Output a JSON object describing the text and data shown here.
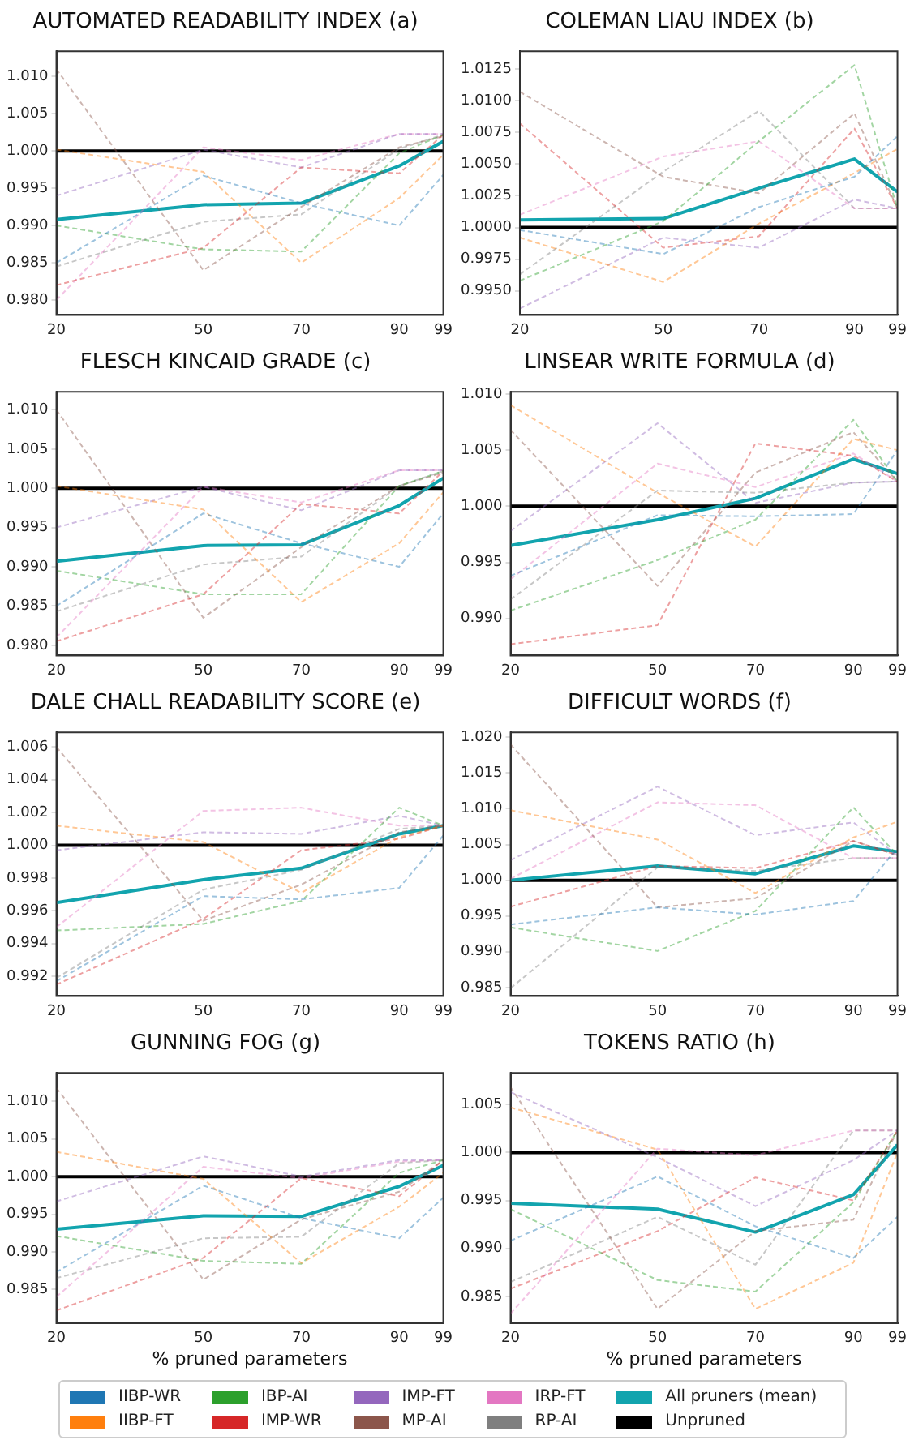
{
  "chart_data": [
    {
      "type": "line",
      "title": "AUTOMATED READABILITY INDEX (a)",
      "x": [
        20,
        50,
        70,
        90,
        99
      ],
      "xlim": [
        20,
        99
      ],
      "xticks": [
        20,
        50,
        70,
        90,
        99
      ],
      "ylim": [
        0.978,
        1.0134
      ],
      "yticks": [
        {
          "value": 0.98,
          "label": "0.980"
        },
        {
          "value": 0.985,
          "label": "0.985"
        },
        {
          "value": 0.99,
          "label": "0.990"
        },
        {
          "value": 0.995,
          "label": "0.995"
        },
        {
          "value": 1.0,
          "label": "1.000"
        },
        {
          "value": 1.005,
          "label": "1.005"
        },
        {
          "value": 1.01,
          "label": "1.010"
        }
      ],
      "grid": false,
      "legend": "bottom",
      "series": [
        {
          "name": "IIBP-WR",
          "color": "#1f77b4",
          "line_style": "dashed",
          "values": [
            0.985,
            0.9967,
            0.993,
            0.99,
            0.9968
          ]
        },
        {
          "name": "IIBP-FT",
          "color": "#ff7f0e",
          "line_style": "dashed",
          "values": [
            1.0002,
            0.9972,
            0.985,
            0.9937,
            0.9995
          ]
        },
        {
          "name": "IBP-AI",
          "color": "#2ca02c",
          "line_style": "dashed",
          "values": [
            0.99,
            0.9868,
            0.9865,
            0.9997,
            1.0022
          ]
        },
        {
          "name": "IMP-WR",
          "color": "#d62728",
          "line_style": "dashed",
          "values": [
            0.982,
            0.987,
            0.9978,
            0.997,
            1.0022
          ]
        },
        {
          "name": "IMP-FT",
          "color": "#9467bd",
          "line_style": "dashed",
          "values": [
            0.994,
            1.0002,
            0.9978,
            1.0023,
            1.0023
          ]
        },
        {
          "name": "MP-AI",
          "color": "#8c564b",
          "line_style": "dashed",
          "values": [
            1.011,
            0.984,
            0.9925,
            1.0005,
            1.002
          ]
        },
        {
          "name": "IRP-FT",
          "color": "#e377c2",
          "line_style": "dashed",
          "values": [
            0.98,
            1.0005,
            0.9988,
            1.0023,
            1.0023
          ]
        },
        {
          "name": "RP-AI",
          "color": "#7f7f7f",
          "line_style": "dashed",
          "values": [
            0.9845,
            0.9905,
            0.9915,
            1.0003,
            1.0022
          ]
        },
        {
          "name": "All pruners (mean)",
          "color": "#12a4ae",
          "line_style": "solid",
          "values": [
            0.9908,
            0.9928,
            0.993,
            0.998,
            1.0013
          ]
        },
        {
          "name": "Unpruned",
          "color": "#000000",
          "line_style": "solid",
          "values": [
            1,
            1,
            1,
            1,
            1
          ]
        }
      ]
    },
    {
      "type": "line",
      "title": "COLEMAN LIAU INDEX (b)",
      "x": [
        20,
        50,
        70,
        90,
        99
      ],
      "xlim": [
        20,
        99
      ],
      "xticks": [
        20,
        50,
        70,
        90,
        99
      ],
      "ylim": [
        0.9931,
        1.0139
      ],
      "yticks": [
        {
          "value": 0.995,
          "label": "0.9950"
        },
        {
          "value": 0.9975,
          "label": "0.9975"
        },
        {
          "value": 1.0,
          "label": "1.0000"
        },
        {
          "value": 1.0025,
          "label": "1.0025"
        },
        {
          "value": 1.005,
          "label": "1.0050"
        },
        {
          "value": 1.0075,
          "label": "1.0075"
        },
        {
          "value": 1.01,
          "label": "1.0100"
        },
        {
          "value": 1.0125,
          "label": "1.0125"
        }
      ],
      "grid": false,
      "legend": "bottom",
      "series": [
        {
          "name": "IIBP-WR",
          "color": "#1f77b4",
          "line_style": "dashed",
          "values": [
            0.9998,
            0.9979,
            1.0016,
            1.004,
            1.0072
          ]
        },
        {
          "name": "IIBP-FT",
          "color": "#ff7f0e",
          "line_style": "dashed",
          "values": [
            0.9992,
            0.9957,
            1.0003,
            1.0043,
            1.0062
          ]
        },
        {
          "name": "IBP-AI",
          "color": "#2ca02c",
          "line_style": "dashed",
          "values": [
            0.9958,
            1.0005,
            1.0068,
            1.0128,
            1.0015
          ]
        },
        {
          "name": "IMP-WR",
          "color": "#d62728",
          "line_style": "dashed",
          "values": [
            1.0082,
            0.9984,
            0.9993,
            1.0078,
            1.0015
          ]
        },
        {
          "name": "IMP-FT",
          "color": "#9467bd",
          "line_style": "dashed",
          "values": [
            0.9936,
            0.9992,
            0.9984,
            1.0022,
            1.0015
          ]
        },
        {
          "name": "MP-AI",
          "color": "#8c564b",
          "line_style": "dashed",
          "values": [
            1.0107,
            1.004,
            1.0027,
            1.009,
            1.0015
          ]
        },
        {
          "name": "IRP-FT",
          "color": "#e377c2",
          "line_style": "dashed",
          "values": [
            1.001,
            1.0056,
            1.0068,
            1.0015,
            1.0015
          ]
        },
        {
          "name": "RP-AI",
          "color": "#7f7f7f",
          "line_style": "dashed",
          "values": [
            0.9963,
            1.0044,
            1.0092,
            1.0015,
            1.0015
          ]
        },
        {
          "name": "All pruners (mean)",
          "color": "#12a4ae",
          "line_style": "solid",
          "values": [
            1.0006,
            1.0007,
            1.0031,
            1.0054,
            1.0028
          ]
        },
        {
          "name": "Unpruned",
          "color": "#000000",
          "line_style": "solid",
          "values": [
            1,
            1,
            1,
            1,
            1
          ]
        }
      ]
    },
    {
      "type": "line",
      "title": "FLESCH KINCAID GRADE (c)",
      "x": [
        20,
        50,
        70,
        90,
        99
      ],
      "xlim": [
        20,
        99
      ],
      "xticks": [
        20,
        50,
        70,
        90,
        99
      ],
      "ylim": [
        0.9787,
        1.0123
      ],
      "yticks": [
        {
          "value": 0.98,
          "label": "0.980"
        },
        {
          "value": 0.985,
          "label": "0.985"
        },
        {
          "value": 0.99,
          "label": "0.990"
        },
        {
          "value": 0.995,
          "label": "0.995"
        },
        {
          "value": 1.0,
          "label": "1.000"
        },
        {
          "value": 1.005,
          "label": "1.005"
        },
        {
          "value": 1.01,
          "label": "1.010"
        }
      ],
      "grid": false,
      "legend": "bottom",
      "series": [
        {
          "name": "IIBP-WR",
          "color": "#1f77b4",
          "line_style": "dashed",
          "values": [
            0.985,
            0.9968,
            0.993,
            0.99,
            0.9968
          ]
        },
        {
          "name": "IIBP-FT",
          "color": "#ff7f0e",
          "line_style": "dashed",
          "values": [
            1.0003,
            0.9973,
            0.9855,
            0.993,
            0.9995
          ]
        },
        {
          "name": "IBP-AI",
          "color": "#2ca02c",
          "line_style": "dashed",
          "values": [
            0.9895,
            0.9865,
            0.9865,
            1.0003,
            1.0022
          ]
        },
        {
          "name": "IMP-WR",
          "color": "#d62728",
          "line_style": "dashed",
          "values": [
            0.9805,
            0.9865,
            0.998,
            0.9968,
            1.0022
          ]
        },
        {
          "name": "IMP-FT",
          "color": "#9467bd",
          "line_style": "dashed",
          "values": [
            0.995,
            1.0002,
            0.9972,
            1.0023,
            1.0023
          ]
        },
        {
          "name": "MP-AI",
          "color": "#8c564b",
          "line_style": "dashed",
          "values": [
            1.01,
            0.9835,
            0.9925,
            1.0003,
            1.002
          ]
        },
        {
          "name": "IRP-FT",
          "color": "#e377c2",
          "line_style": "dashed",
          "values": [
            0.981,
            1.0002,
            0.9982,
            1.0023,
            1.0023
          ]
        },
        {
          "name": "RP-AI",
          "color": "#7f7f7f",
          "line_style": "dashed",
          "values": [
            0.9843,
            0.9903,
            0.9913,
            1.0003,
            1.0022
          ]
        },
        {
          "name": "All pruners (mean)",
          "color": "#12a4ae",
          "line_style": "solid",
          "values": [
            0.9907,
            0.9927,
            0.9928,
            0.9978,
            1.0013
          ]
        },
        {
          "name": "Unpruned",
          "color": "#000000",
          "line_style": "solid",
          "values": [
            1,
            1,
            1,
            1,
            1
          ]
        }
      ]
    },
    {
      "type": "line",
      "title": "LINSEAR WRITE FORMULA (d)",
      "x": [
        20,
        50,
        70,
        90,
        99
      ],
      "xlim": [
        20,
        99
      ],
      "xticks": [
        20,
        50,
        70,
        90,
        99
      ],
      "ylim": [
        0.9867,
        1.0102
      ],
      "yticks": [
        {
          "value": 0.99,
          "label": "0.990"
        },
        {
          "value": 0.995,
          "label": "0.995"
        },
        {
          "value": 1.0,
          "label": "1.000"
        },
        {
          "value": 1.005,
          "label": "1.005"
        },
        {
          "value": 1.01,
          "label": "1.010"
        }
      ],
      "grid": false,
      "legend": "bottom",
      "series": [
        {
          "name": "IIBP-WR",
          "color": "#1f77b4",
          "line_style": "dashed",
          "values": [
            0.9938,
            0.9992,
            0.9991,
            0.9993,
            1.005
          ]
        },
        {
          "name": "IIBP-FT",
          "color": "#ff7f0e",
          "line_style": "dashed",
          "values": [
            1.009,
            1.0012,
            0.9964,
            1.006,
            1.005
          ]
        },
        {
          "name": "IBP-AI",
          "color": "#2ca02c",
          "line_style": "dashed",
          "values": [
            0.9907,
            0.9952,
            0.9988,
            1.0077,
            1.0022
          ]
        },
        {
          "name": "IMP-WR",
          "color": "#d62728",
          "line_style": "dashed",
          "values": [
            0.9877,
            0.9894,
            1.0056,
            1.0045,
            1.0022
          ]
        },
        {
          "name": "IMP-FT",
          "color": "#9467bd",
          "line_style": "dashed",
          "values": [
            0.9978,
            1.0074,
            1.0003,
            1.0021,
            1.0022
          ]
        },
        {
          "name": "MP-AI",
          "color": "#8c564b",
          "line_style": "dashed",
          "values": [
            1.0068,
            0.9929,
            1.003,
            1.0066,
            1.0022
          ]
        },
        {
          "name": "IRP-FT",
          "color": "#e377c2",
          "line_style": "dashed",
          "values": [
            0.9935,
            1.0038,
            1.0017,
            1.0047,
            1.0022
          ]
        },
        {
          "name": "RP-AI",
          "color": "#7f7f7f",
          "line_style": "dashed",
          "values": [
            0.9917,
            1.0014,
            1.0012,
            1.0021,
            1.0022
          ]
        },
        {
          "name": "All pruners (mean)",
          "color": "#12a4ae",
          "line_style": "solid",
          "values": [
            0.9965,
            0.9988,
            1.0007,
            1.0042,
            1.0029
          ]
        },
        {
          "name": "Unpruned",
          "color": "#000000",
          "line_style": "solid",
          "values": [
            1,
            1,
            1,
            1,
            1
          ]
        }
      ]
    },
    {
      "type": "line",
      "title": "DALE CHALL READABILITY SCORE (e)",
      "x": [
        20,
        50,
        70,
        90,
        99
      ],
      "xlim": [
        20,
        99
      ],
      "xticks": [
        20,
        50,
        70,
        90,
        99
      ],
      "ylim": [
        0.9908,
        1.0069
      ],
      "yticks": [
        {
          "value": 0.992,
          "label": "0.992"
        },
        {
          "value": 0.994,
          "label": "0.994"
        },
        {
          "value": 0.996,
          "label": "0.996"
        },
        {
          "value": 0.998,
          "label": "0.998"
        },
        {
          "value": 1.0,
          "label": "1.000"
        },
        {
          "value": 1.002,
          "label": "1.002"
        },
        {
          "value": 1.004,
          "label": "1.004"
        },
        {
          "value": 1.006,
          "label": "1.006"
        }
      ],
      "grid": false,
      "legend": "bottom",
      "series": [
        {
          "name": "IIBP-WR",
          "color": "#1f77b4",
          "line_style": "dashed",
          "values": [
            0.9917,
            0.9969,
            0.9967,
            0.9974,
            1.0006
          ]
        },
        {
          "name": "IIBP-FT",
          "color": "#ff7f0e",
          "line_style": "dashed",
          "values": [
            1.0012,
            1.0002,
            0.9971,
            1.0005,
            1.0012
          ]
        },
        {
          "name": "IBP-AI",
          "color": "#2ca02c",
          "line_style": "dashed",
          "values": [
            0.9948,
            0.9952,
            0.9966,
            1.0023,
            1.0012
          ]
        },
        {
          "name": "IMP-WR",
          "color": "#d62728",
          "line_style": "dashed",
          "values": [
            0.9915,
            0.9955,
            0.9997,
            1.0004,
            1.0012
          ]
        },
        {
          "name": "IMP-FT",
          "color": "#9467bd",
          "line_style": "dashed",
          "values": [
            0.9997,
            1.0008,
            1.0007,
            1.0018,
            1.0012
          ]
        },
        {
          "name": "MP-AI",
          "color": "#8c564b",
          "line_style": "dashed",
          "values": [
            1.006,
            0.9954,
            0.9976,
            1.0008,
            1.0012
          ]
        },
        {
          "name": "IRP-FT",
          "color": "#e377c2",
          "line_style": "dashed",
          "values": [
            0.995,
            1.0021,
            1.0023,
            1.0012,
            1.0012
          ]
        },
        {
          "name": "RP-AI",
          "color": "#7f7f7f",
          "line_style": "dashed",
          "values": [
            0.9919,
            0.9973,
            0.9985,
            1.001,
            1.0012
          ]
        },
        {
          "name": "All pruners (mean)",
          "color": "#12a4ae",
          "line_style": "solid",
          "values": [
            0.9965,
            0.9979,
            0.9986,
            1.0007,
            1.0012
          ]
        },
        {
          "name": "Unpruned",
          "color": "#000000",
          "line_style": "solid",
          "values": [
            1,
            1,
            1,
            1,
            1
          ]
        }
      ]
    },
    {
      "type": "line",
      "title": "DIFFICULT WORDS (f)",
      "x": [
        20,
        50,
        70,
        90,
        99
      ],
      "xlim": [
        20,
        99
      ],
      "xticks": [
        20,
        50,
        70,
        90,
        99
      ],
      "ylim": [
        0.9838,
        1.0207
      ],
      "yticks": [
        {
          "value": 0.985,
          "label": "0.985"
        },
        {
          "value": 0.99,
          "label": "0.990"
        },
        {
          "value": 0.995,
          "label": "0.995"
        },
        {
          "value": 1.0,
          "label": "1.000"
        },
        {
          "value": 1.005,
          "label": "1.005"
        },
        {
          "value": 1.01,
          "label": "1.010"
        },
        {
          "value": 1.015,
          "label": "1.015"
        },
        {
          "value": 1.02,
          "label": "1.020"
        }
      ],
      "grid": false,
      "legend": "bottom",
      "series": [
        {
          "name": "IIBP-WR",
          "color": "#1f77b4",
          "line_style": "dashed",
          "values": [
            0.9938,
            0.9962,
            0.9952,
            0.9971,
            1.0045
          ]
        },
        {
          "name": "IIBP-FT",
          "color": "#ff7f0e",
          "line_style": "dashed",
          "values": [
            1.0098,
            1.0057,
            0.9982,
            1.006,
            1.0082
          ]
        },
        {
          "name": "IBP-AI",
          "color": "#2ca02c",
          "line_style": "dashed",
          "values": [
            0.9934,
            0.9901,
            0.9957,
            1.0102,
            1.0035
          ]
        },
        {
          "name": "IMP-WR",
          "color": "#d62728",
          "line_style": "dashed",
          "values": [
            0.9963,
            1.002,
            1.0017,
            1.0055,
            1.0035
          ]
        },
        {
          "name": "IMP-FT",
          "color": "#9467bd",
          "line_style": "dashed",
          "values": [
            1.0028,
            1.0131,
            1.0063,
            1.0081,
            1.0035
          ]
        },
        {
          "name": "MP-AI",
          "color": "#8c564b",
          "line_style": "dashed",
          "values": [
            1.019,
            0.9962,
            0.9975,
            1.0055,
            1.0035
          ]
        },
        {
          "name": "IRP-FT",
          "color": "#e377c2",
          "line_style": "dashed",
          "values": [
            1.0002,
            1.0109,
            1.0105,
            1.0031,
            1.0031
          ]
        },
        {
          "name": "RP-AI",
          "color": "#7f7f7f",
          "line_style": "dashed",
          "values": [
            0.9849,
            1.0018,
            1.0013,
            1.0031,
            1.0031
          ]
        },
        {
          "name": "All pruners (mean)",
          "color": "#12a4ae",
          "line_style": "solid",
          "values": [
            1.0,
            1.002,
            1.0009,
            1.0048,
            1.004
          ]
        },
        {
          "name": "Unpruned",
          "color": "#000000",
          "line_style": "solid",
          "values": [
            1,
            1,
            1,
            1,
            1
          ]
        }
      ]
    },
    {
      "type": "line",
      "title": "GUNNING FOG (g)",
      "xlabel": "% pruned parameters",
      "x": [
        20,
        50,
        70,
        90,
        99
      ],
      "xlim": [
        20,
        99
      ],
      "xticks": [
        20,
        50,
        70,
        90,
        99
      ],
      "ylim": [
        0.9805,
        1.0138
      ],
      "yticks": [
        {
          "value": 0.985,
          "label": "0.985"
        },
        {
          "value": 0.99,
          "label": "0.990"
        },
        {
          "value": 0.995,
          "label": "0.995"
        },
        {
          "value": 1.0,
          "label": "1.000"
        },
        {
          "value": 1.005,
          "label": "1.005"
        },
        {
          "value": 1.01,
          "label": "1.010"
        }
      ],
      "grid": false,
      "legend": "bottom",
      "series": [
        {
          "name": "IIBP-WR",
          "color": "#1f77b4",
          "line_style": "dashed",
          "values": [
            0.9873,
            0.9988,
            0.9945,
            0.9918,
            0.9972
          ]
        },
        {
          "name": "IIBP-FT",
          "color": "#ff7f0e",
          "line_style": "dashed",
          "values": [
            1.0033,
            0.9997,
            0.9885,
            0.996,
            1.0005
          ]
        },
        {
          "name": "IBP-AI",
          "color": "#2ca02c",
          "line_style": "dashed",
          "values": [
            0.9921,
            0.9888,
            0.9884,
            1.0005,
            1.0022
          ]
        },
        {
          "name": "IMP-WR",
          "color": "#d62728",
          "line_style": "dashed",
          "values": [
            0.9822,
            0.9892,
            0.9998,
            0.9974,
            1.0022
          ]
        },
        {
          "name": "IMP-FT",
          "color": "#9467bd",
          "line_style": "dashed",
          "values": [
            0.9967,
            1.0027,
            1.0,
            1.0022,
            1.0022
          ]
        },
        {
          "name": "MP-AI",
          "color": "#8c564b",
          "line_style": "dashed",
          "values": [
            1.0118,
            0.9863,
            0.9943,
            0.998,
            1.0022
          ]
        },
        {
          "name": "IRP-FT",
          "color": "#e377c2",
          "line_style": "dashed",
          "values": [
            0.984,
            1.0013,
            0.9998,
            1.002,
            1.0022
          ]
        },
        {
          "name": "RP-AI",
          "color": "#7f7f7f",
          "line_style": "dashed",
          "values": [
            0.9865,
            0.9918,
            0.992,
            1.0018,
            1.0022
          ]
        },
        {
          "name": "All pruners (mean)",
          "color": "#12a4ae",
          "line_style": "solid",
          "values": [
            0.993,
            0.9948,
            0.9947,
            0.9987,
            1.0015
          ]
        },
        {
          "name": "Unpruned",
          "color": "#000000",
          "line_style": "solid",
          "values": [
            1,
            1,
            1,
            1,
            1
          ]
        }
      ]
    },
    {
      "type": "line",
      "title": "TOKENS RATIO (h)",
      "xlabel": "% pruned parameters",
      "x": [
        20,
        50,
        70,
        90,
        99
      ],
      "xlim": [
        20,
        99
      ],
      "xticks": [
        20,
        50,
        70,
        90,
        99
      ],
      "ylim": [
        0.9822,
        1.0083
      ],
      "yticks": [
        {
          "value": 0.985,
          "label": "0.985"
        },
        {
          "value": 0.99,
          "label": "0.990"
        },
        {
          "value": 0.995,
          "label": "0.995"
        },
        {
          "value": 1.0,
          "label": "1.000"
        },
        {
          "value": 1.005,
          "label": "1.005"
        }
      ],
      "grid": false,
      "legend": "bottom",
      "series": [
        {
          "name": "IIBP-WR",
          "color": "#1f77b4",
          "line_style": "dashed",
          "values": [
            0.9908,
            0.9975,
            0.9923,
            0.989,
            0.9933
          ]
        },
        {
          "name": "IIBP-FT",
          "color": "#ff7f0e",
          "line_style": "dashed",
          "values": [
            1.0047,
            1.0003,
            0.9837,
            0.9885,
            1.0
          ]
        },
        {
          "name": "IBP-AI",
          "color": "#2ca02c",
          "line_style": "dashed",
          "values": [
            0.9941,
            0.9867,
            0.9855,
            0.9948,
            1.0023
          ]
        },
        {
          "name": "IMP-WR",
          "color": "#d62728",
          "line_style": "dashed",
          "values": [
            0.9858,
            0.9918,
            0.9974,
            0.995,
            1.0023
          ]
        },
        {
          "name": "IMP-FT",
          "color": "#9467bd",
          "line_style": "dashed",
          "values": [
            1.0063,
            0.9995,
            0.9944,
            0.9992,
            1.0023
          ]
        },
        {
          "name": "MP-AI",
          "color": "#8c564b",
          "line_style": "dashed",
          "values": [
            1.0068,
            0.9837,
            0.9918,
            0.993,
            1.0023
          ]
        },
        {
          "name": "IRP-FT",
          "color": "#e377c2",
          "line_style": "dashed",
          "values": [
            0.9832,
            1.0004,
            0.9997,
            1.0023,
            1.0023
          ]
        },
        {
          "name": "RP-AI",
          "color": "#7f7f7f",
          "line_style": "dashed",
          "values": [
            0.9865,
            0.9933,
            0.9883,
            1.0023,
            1.0023
          ]
        },
        {
          "name": "All pruners (mean)",
          "color": "#12a4ae",
          "line_style": "solid",
          "values": [
            0.9947,
            0.9941,
            0.9917,
            0.9956,
            1.0008
          ]
        },
        {
          "name": "Unpruned",
          "color": "#000000",
          "line_style": "solid",
          "values": [
            1,
            1,
            1,
            1,
            1
          ]
        }
      ]
    }
  ]
}
